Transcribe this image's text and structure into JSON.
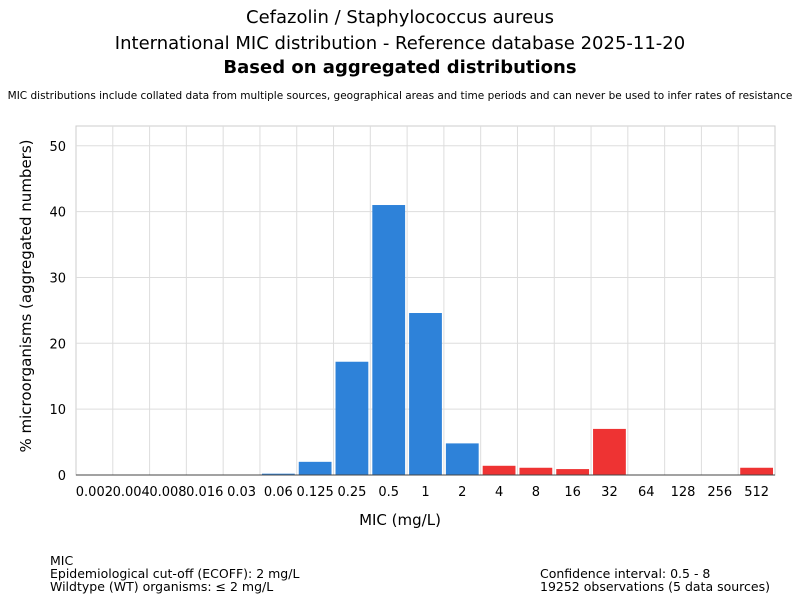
{
  "header": {
    "title_line1": "Cefazolin / Staphylococcus aureus",
    "title_line2": "International MIC distribution - Reference database 2025-11-20",
    "title_line3": "Based on aggregated distributions",
    "note": "MIC distributions include collated data from multiple sources, geographical areas and time periods and can never be used to infer rates of resistance"
  },
  "chart_data": {
    "type": "bar",
    "title": "Cefazolin / Staphylococcus aureus",
    "xlabel": "MIC (mg/L)",
    "ylabel": "% microorganisms (aggregated numbers)",
    "ylim": [
      0,
      53
    ],
    "yticks": [
      0,
      10,
      20,
      30,
      40,
      50
    ],
    "grid": true,
    "categories": [
      "0.002",
      "0.004",
      "0.008",
      "0.016",
      "0.03",
      "0.06",
      "0.125",
      "0.25",
      "0.5",
      "1",
      "2",
      "4",
      "8",
      "16",
      "32",
      "64",
      "128",
      "256",
      "512"
    ],
    "values": [
      0,
      0,
      0,
      0,
      0,
      0.2,
      2.0,
      17.2,
      41.0,
      24.6,
      4.8,
      1.4,
      1.1,
      0.9,
      7.0,
      0,
      0,
      0,
      1.1
    ],
    "colors": [
      "#2e82d9",
      "#2e82d9",
      "#2e82d9",
      "#2e82d9",
      "#2e82d9",
      "#2e82d9",
      "#2e82d9",
      "#2e82d9",
      "#2e82d9",
      "#2e82d9",
      "#2e82d9",
      "#ee3333",
      "#ee3333",
      "#ee3333",
      "#ee3333",
      "#ee3333",
      "#ee3333",
      "#ee3333",
      "#ee3333"
    ],
    "wildtype_color": "#2e82d9",
    "non_wildtype_color": "#ee3333"
  },
  "footer": {
    "left_line1": "MIC",
    "left_line2": "Epidemiological cut-off (ECOFF): 2 mg/L",
    "left_line3": "Wildtype (WT) organisms: ≤ 2 mg/L",
    "right_line1": "Confidence interval: 0.5 - 8",
    "right_line2": "19252 observations (5 data sources)"
  }
}
